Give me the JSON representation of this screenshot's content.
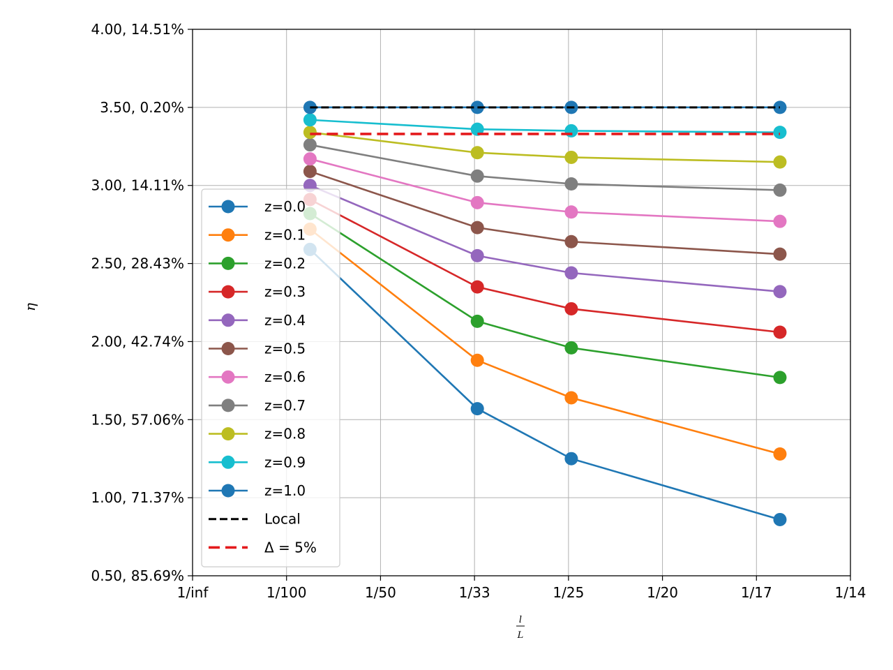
{
  "chart_data": {
    "type": "line",
    "title": "",
    "xlabel": {
      "numerator": "l",
      "denominator": "L"
    },
    "ylabel": "η",
    "x_tick_labels": [
      "1/inf",
      "1/100",
      "1/50",
      "1/33",
      "1/25",
      "1/20",
      "1/17",
      "1/14"
    ],
    "x_ticks": [
      0,
      0.01,
      0.02,
      0.03,
      0.04,
      0.05,
      0.06,
      0.07
    ],
    "xlim": [
      0,
      0.07
    ],
    "y_tick_labels": [
      "0.50, 85.69%",
      "1.00, 71.37%",
      "1.50, 57.06%",
      "2.00, 42.74%",
      "2.50, 28.43%",
      "3.00, 14.11%",
      "3.50, 0.20%",
      "4.00, 14.51%"
    ],
    "y_ticks": [
      0.5,
      1.0,
      1.5,
      2.0,
      2.5,
      3.0,
      3.5,
      4.0
    ],
    "ylim": [
      0.5,
      4.0
    ],
    "grid": true,
    "legend_position": "lower-left",
    "x": [
      0.0125,
      0.0303,
      0.0403,
      0.0625
    ],
    "series": [
      {
        "name": "z=0.0",
        "color": "#1f77b4",
        "values": [
          2.59,
          1.57,
          1.25,
          0.86
        ]
      },
      {
        "name": "z=0.1",
        "color": "#ff7f0e",
        "values": [
          2.72,
          1.88,
          1.64,
          1.28
        ]
      },
      {
        "name": "z=0.2",
        "color": "#2ca02c",
        "values": [
          2.82,
          2.13,
          1.96,
          1.77
        ]
      },
      {
        "name": "z=0.3",
        "color": "#d62728",
        "values": [
          2.91,
          2.35,
          2.21,
          2.06
        ]
      },
      {
        "name": "z=0.4",
        "color": "#9467bd",
        "values": [
          3.0,
          2.55,
          2.44,
          2.32
        ]
      },
      {
        "name": "z=0.5",
        "color": "#8c564b",
        "values": [
          3.09,
          2.73,
          2.64,
          2.56
        ]
      },
      {
        "name": "z=0.6",
        "color": "#e377c2",
        "values": [
          3.17,
          2.89,
          2.83,
          2.77
        ]
      },
      {
        "name": "z=0.7",
        "color": "#7f7f7f",
        "values": [
          3.26,
          3.06,
          3.01,
          2.97
        ]
      },
      {
        "name": "z=0.8",
        "color": "#bcbd22",
        "values": [
          3.34,
          3.21,
          3.18,
          3.15
        ]
      },
      {
        "name": "z=0.9",
        "color": "#17becf",
        "values": [
          3.42,
          3.36,
          3.35,
          3.34
        ]
      },
      {
        "name": "z=1.0",
        "color": "#1f77b4",
        "values": [
          3.5,
          3.5,
          3.5,
          3.5
        ]
      }
    ],
    "reference_lines": [
      {
        "name": "Local",
        "color": "#000000",
        "y": 3.5,
        "x_range": [
          0.0125,
          0.0625
        ],
        "style": "dashed"
      },
      {
        "name": "Δ = 5%",
        "color": "#e41a1c",
        "y": 3.33,
        "x_range": [
          0.0125,
          0.0625
        ],
        "style": "dashed"
      }
    ]
  }
}
